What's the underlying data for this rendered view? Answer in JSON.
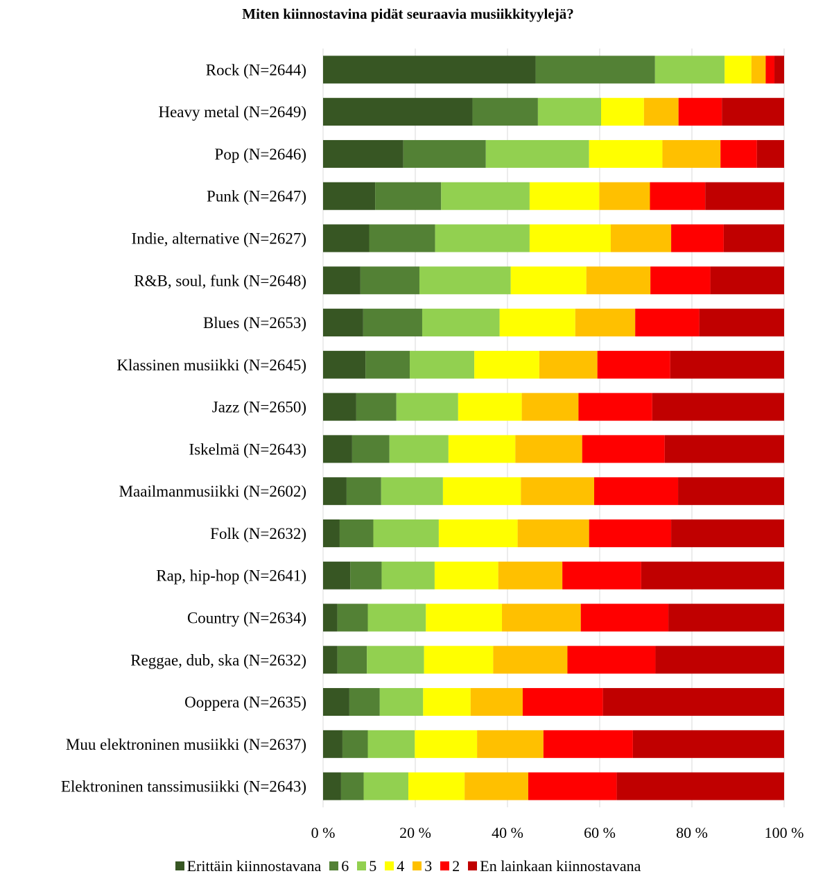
{
  "chart_data": {
    "type": "bar",
    "orientation": "horizontal",
    "stacked": true,
    "title": "Miten kiinnostavina pidät seuraavia musiikkityylejä?",
    "categories": [
      "Rock (N=2644)",
      "Heavy metal (N=2649)",
      "Pop (N=2646)",
      "Punk (N=2647)",
      "Indie, alternative (N=2627)",
      "R&B, soul, funk (N=2648)",
      "Blues (N=2653)",
      "Klassinen musiikki (N=2645)",
      "Jazz (N=2650)",
      "Iskelmä (N=2643)",
      "Maailmanmusiikki (N=2602)",
      "Folk (N=2632)",
      "Rap, hip-hop (N=2641)",
      "Country (N=2634)",
      "Reggae, dub, ska (N=2632)",
      "Ooppera (N=2635)",
      "Muu elektroninen musiikki (N=2637)",
      "Elektroninen tanssimusiikki (N=2643)"
    ],
    "series": [
      {
        "name": "Erittäin kiinnostavana",
        "color": "#375623",
        "values": [
          46.1,
          32.4,
          17.4,
          11.3,
          10.0,
          8.1,
          8.7,
          9.2,
          7.2,
          6.3,
          5.1,
          3.6,
          5.9,
          3.1,
          3.1,
          5.7,
          4.2,
          3.9
        ]
      },
      {
        "name": "6",
        "color": "#538135",
        "values": [
          25.9,
          14.2,
          17.9,
          14.3,
          14.3,
          12.8,
          12.8,
          9.6,
          8.7,
          8.1,
          7.5,
          7.3,
          6.8,
          6.6,
          6.4,
          6.6,
          5.5,
          4.9
        ]
      },
      {
        "name": "5",
        "color": "#92D050",
        "values": [
          15.1,
          13.7,
          22.4,
          19.2,
          20.5,
          19.8,
          16.8,
          14.0,
          13.4,
          12.8,
          13.4,
          14.2,
          11.5,
          12.6,
          12.4,
          9.4,
          10.2,
          9.7
        ]
      },
      {
        "name": "4",
        "color": "#FFFF00",
        "values": [
          5.8,
          9.3,
          15.9,
          15.1,
          17.6,
          16.4,
          16.4,
          14.1,
          13.8,
          14.5,
          16.9,
          17.1,
          13.8,
          16.5,
          15.0,
          10.3,
          13.5,
          12.2
        ]
      },
      {
        "name": "3",
        "color": "#FFC000",
        "values": [
          3.1,
          7.5,
          12.6,
          11.0,
          13.1,
          13.9,
          13.0,
          12.6,
          12.3,
          14.5,
          15.9,
          15.5,
          13.9,
          17.1,
          16.1,
          11.3,
          14.4,
          13.8
        ]
      },
      {
        "name": "2",
        "color": "#FF0000",
        "values": [
          1.9,
          9.4,
          7.9,
          12.0,
          11.4,
          13.0,
          13.9,
          15.8,
          16.0,
          17.9,
          18.2,
          17.8,
          17.1,
          19.0,
          19.1,
          17.4,
          19.4,
          19.2
        ]
      },
      {
        "name": "En lainkaan kiinnostavana",
        "color": "#C00000",
        "values": [
          2.1,
          13.5,
          5.9,
          17.1,
          13.1,
          16.0,
          18.4,
          24.7,
          28.6,
          25.9,
          23.0,
          24.5,
          31.0,
          25.1,
          27.9,
          39.3,
          32.8,
          36.3
        ]
      }
    ],
    "xlim": [
      0,
      100
    ],
    "xticks": [
      "0 %",
      "20 %",
      "40 %",
      "60 %",
      "80 %",
      "100 %"
    ],
    "grid": true,
    "legend_position": "bottom"
  }
}
